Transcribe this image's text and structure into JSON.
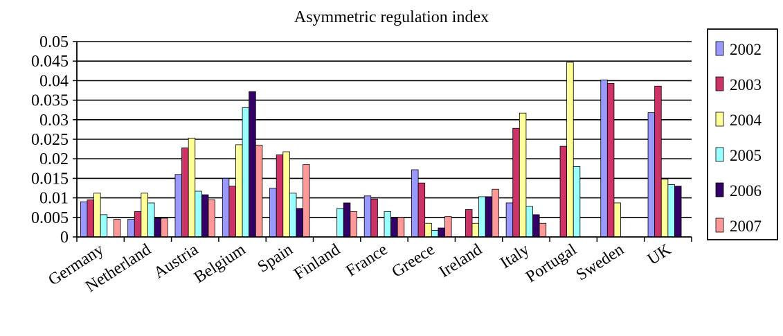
{
  "chart_data": {
    "type": "bar",
    "title": "Asymmetric regulation index",
    "xlabel": "",
    "ylabel": "",
    "ylim": [
      0,
      0.05
    ],
    "yticks": [
      "0",
      "0.005",
      "0.01",
      "0.015",
      "0.02",
      "0.025",
      "0.03",
      "0.035",
      "0.04",
      "0.045",
      "0.05"
    ],
    "grid": "horizontal",
    "legend_position": "right",
    "categories": [
      "Germany",
      "Netherland",
      "Austria",
      "Belgium",
      "Spain",
      "Finland",
      "France",
      "Greece",
      "Ireland",
      "Italy",
      "Portugal",
      "Sweden",
      "UK"
    ],
    "series": [
      {
        "name": "2002",
        "color": "#9999ff",
        "values": [
          0.009,
          0.0045,
          0.016,
          0.015,
          0.0125,
          0,
          0.0105,
          0.0172,
          0,
          0.0087,
          0,
          0.0402,
          0.0318
        ]
      },
      {
        "name": "2003",
        "color": "#cc3366",
        "values": [
          0.0095,
          0.0065,
          0.0228,
          0.013,
          0.021,
          0,
          0.0097,
          0.0138,
          0.007,
          0.0278,
          0.0232,
          0.0393,
          0.0386
        ]
      },
      {
        "name": "2004",
        "color": "#ffff99",
        "values": [
          0.0112,
          0.0112,
          0.0253,
          0.0236,
          0.0218,
          0,
          0,
          0.0035,
          0.0035,
          0.0317,
          0.0447,
          0.0087,
          0.0148
        ]
      },
      {
        "name": "2005",
        "color": "#99ffff",
        "values": [
          0.0057,
          0.0087,
          0.0117,
          0.0331,
          0.0112,
          0.0073,
          0.0065,
          0.0017,
          0.0103,
          0.0078,
          0.018,
          0,
          0.0134
        ]
      },
      {
        "name": "2006",
        "color": "#330066",
        "values": [
          0,
          0.0048,
          0.0108,
          0.0372,
          0.0073,
          0.0087,
          0.005,
          0.0023,
          0.0103,
          0.0057,
          0,
          0,
          0.013
        ]
      },
      {
        "name": "2007",
        "color": "#ff9999",
        "values": [
          0.0045,
          0.0048,
          0.0095,
          0.0235,
          0.0185,
          0.0065,
          0.005,
          0.0052,
          0.0122,
          0.0035,
          0,
          0,
          0
        ]
      }
    ]
  }
}
